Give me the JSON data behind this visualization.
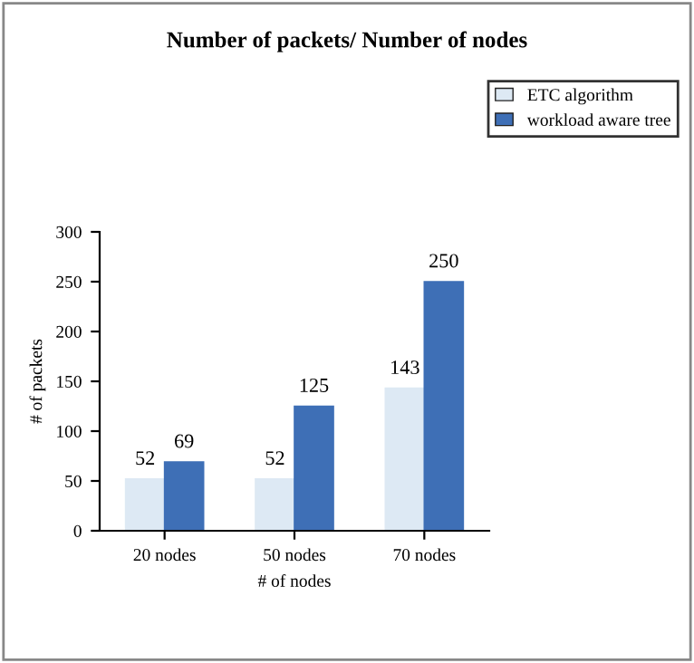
{
  "chart_data": {
    "type": "bar",
    "title": "Number of packets/ Number of nodes",
    "xlabel": "# of nodes",
    "ylabel": "# of packets",
    "categories": [
      "20 nodes",
      "50 nodes",
      "70 nodes"
    ],
    "series": [
      {
        "name": "ETC algorithm",
        "color": "#dde9f4",
        "values": [
          52,
          52,
          143
        ]
      },
      {
        "name": "workload aware tree",
        "color": "#3e6fb6",
        "values": [
          69,
          125,
          250
        ]
      }
    ],
    "ylim": [
      0,
      300
    ],
    "yticks": [
      0,
      50,
      100,
      150,
      200,
      250,
      300
    ],
    "data_labels": true,
    "legend": "top right",
    "grid": false
  }
}
